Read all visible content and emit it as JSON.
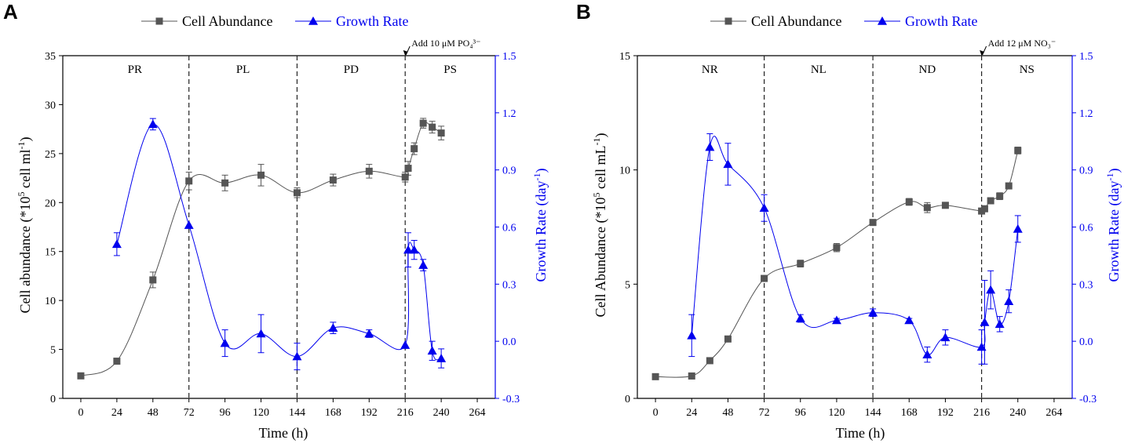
{
  "figure": {
    "legend": {
      "abundance_label": "Cell Abundance",
      "growth_label": "Growth Rate"
    },
    "colors": {
      "abundance": "#555555",
      "growth": "#0000ee",
      "axis": "#000000"
    }
  },
  "chart_data": [
    {
      "type": "line",
      "panel": "A",
      "xlabel": "Time (h)",
      "ylabel_left": "Cell abundance (*10^5 cell ml^-1)",
      "ylabel_right": "Growth Rate (day^-1)",
      "xlim": [
        -12,
        276
      ],
      "ylim_left": [
        0,
        35
      ],
      "ylim_right": [
        -0.3,
        1.5
      ],
      "x_ticks": [
        0,
        24,
        48,
        72,
        96,
        120,
        144,
        168,
        192,
        216,
        240,
        264
      ],
      "y_left_ticks": [
        0,
        5,
        10,
        15,
        20,
        25,
        30,
        35
      ],
      "y_right_ticks": [
        -0.3,
        0.0,
        0.3,
        0.6,
        0.9,
        1.2,
        1.5
      ],
      "y_right_tick_labels": [
        "-0.3",
        "0.0",
        "0.3",
        "0.6",
        "0.9",
        "1.2",
        "1.5"
      ],
      "phase_lines": [
        72,
        144,
        216
      ],
      "phases": [
        {
          "label": "PR",
          "x": 36
        },
        {
          "label": "PL",
          "x": 108
        },
        {
          "label": "PD",
          "x": 180
        },
        {
          "label": "PS",
          "x": 246
        }
      ],
      "annotation": {
        "text": "Add 10 μM PO₄³⁻",
        "x": 216
      },
      "series": [
        {
          "name": "Cell Abundance",
          "axis": "left",
          "marker": "square",
          "x": [
            0,
            24,
            48,
            72,
            96,
            120,
            144,
            168,
            192,
            216,
            218,
            222,
            228,
            234,
            240
          ],
          "y": [
            2.3,
            3.8,
            12.1,
            22.2,
            22.0,
            22.8,
            21.0,
            22.3,
            23.2,
            22.6,
            23.5,
            25.5,
            28.1,
            27.7,
            27.1
          ],
          "err": [
            0,
            0,
            0.8,
            0.9,
            0.8,
            1.1,
            0.5,
            0.6,
            0.7,
            0.5,
            0.7,
            0.6,
            0.5,
            0.6,
            0.7
          ]
        },
        {
          "name": "Growth Rate",
          "axis": "right",
          "marker": "triangle",
          "x": [
            24,
            48,
            72,
            96,
            120,
            144,
            168,
            192,
            216,
            218,
            222,
            228,
            234,
            240
          ],
          "y": [
            0.51,
            1.14,
            0.61,
            -0.01,
            0.04,
            -0.08,
            0.07,
            0.04,
            -0.02,
            0.48,
            0.48,
            0.4,
            -0.05,
            -0.09
          ],
          "err": [
            0.06,
            0.03,
            0,
            0.07,
            0.1,
            0.07,
            0.03,
            0.02,
            0,
            0.09,
            0.05,
            0.03,
            0.05,
            0.05
          ]
        }
      ]
    },
    {
      "type": "line",
      "panel": "B",
      "xlabel": "Time (h)",
      "ylabel_left": "Cell Abundance (*10^5 cell mL^-1)",
      "ylabel_right": "Growth Rate (day^-1)",
      "xlim": [
        -12,
        276
      ],
      "ylim_left": [
        0,
        15
      ],
      "ylim_right": [
        -0.3,
        1.5
      ],
      "x_ticks": [
        0,
        24,
        48,
        72,
        96,
        120,
        144,
        168,
        192,
        216,
        240,
        264
      ],
      "y_left_ticks": [
        0,
        5,
        10,
        15
      ],
      "y_right_ticks": [
        -0.3,
        0.0,
        0.3,
        0.6,
        0.9,
        1.2,
        1.5
      ],
      "y_right_tick_labels": [
        "-0.3",
        "0.0",
        "0.3",
        "0.6",
        "0.9",
        "1.2",
        "1.5"
      ],
      "phase_lines": [
        72,
        144,
        216
      ],
      "phases": [
        {
          "label": "NR",
          "x": 36
        },
        {
          "label": "NL",
          "x": 108
        },
        {
          "label": "ND",
          "x": 180
        },
        {
          "label": "NS",
          "x": 246
        }
      ],
      "annotation": {
        "text": "Add 12 μM NO₃⁻",
        "x": 216
      },
      "series": [
        {
          "name": "Cell Abundance",
          "axis": "left",
          "marker": "square",
          "x": [
            0,
            24,
            36,
            48,
            72,
            96,
            120,
            144,
            168,
            180,
            192,
            216,
            218,
            222,
            228,
            234,
            240
          ],
          "y": [
            0.95,
            0.98,
            1.65,
            2.6,
            5.25,
            5.9,
            6.6,
            7.7,
            8.6,
            8.35,
            8.45,
            8.2,
            8.3,
            8.65,
            8.85,
            9.3,
            10.85
          ],
          "err": [
            0,
            0,
            0.12,
            0,
            0,
            0.15,
            0.18,
            0.12,
            0.15,
            0.22,
            0.1,
            0.12,
            0.12,
            0.1,
            0.15,
            0.1,
            0.15
          ]
        },
        {
          "name": "Growth Rate",
          "axis": "right",
          "marker": "triangle",
          "x": [
            24,
            36,
            48,
            72,
            96,
            120,
            144,
            168,
            180,
            192,
            216,
            218,
            222,
            228,
            234,
            240
          ],
          "y": [
            0.03,
            1.02,
            0.93,
            0.7,
            0.12,
            0.11,
            0.15,
            0.11,
            -0.07,
            0.02,
            -0.03,
            0.1,
            0.27,
            0.09,
            0.21,
            0.59
          ],
          "err": [
            0.11,
            0.07,
            0.11,
            0.07,
            0.02,
            0.01,
            0.02,
            0.01,
            0.04,
            0.04,
            0.09,
            0.22,
            0.1,
            0.04,
            0.06,
            0.07
          ]
        }
      ]
    }
  ]
}
